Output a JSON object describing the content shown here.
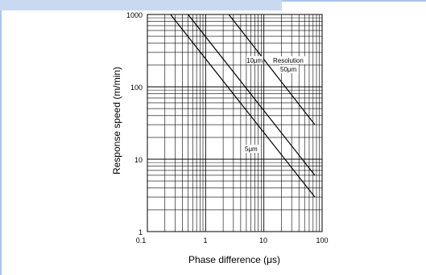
{
  "colors": {
    "frame": "#a9c4e6",
    "strip": "#c9d9f0",
    "line": "#000000"
  },
  "chart_data": {
    "type": "line",
    "xscale": "log",
    "yscale": "log",
    "xlim": [
      0.1,
      100
    ],
    "ylim": [
      1,
      1000
    ],
    "grid": true,
    "xlabel": "Phase difference (μs)",
    "ylabel": "Response speed (m/min)",
    "xticks": [
      "0.1",
      "1",
      "10",
      "100"
    ],
    "yticks": [
      "1",
      "10",
      "100",
      "1000"
    ],
    "series": [
      {
        "name": "5μm",
        "points": [
          [
            0.25,
            1000
          ],
          [
            75,
            3
          ]
        ]
      },
      {
        "name": "10μm",
        "points": [
          [
            0.5,
            1000
          ],
          [
            75,
            6
          ]
        ]
      },
      {
        "name": "50μm",
        "points": [
          [
            2.5,
            1000
          ],
          [
            75,
            30
          ]
        ]
      }
    ],
    "annotations": [
      "10μm",
      "Resolution",
      "50μm",
      "5μm"
    ]
  }
}
